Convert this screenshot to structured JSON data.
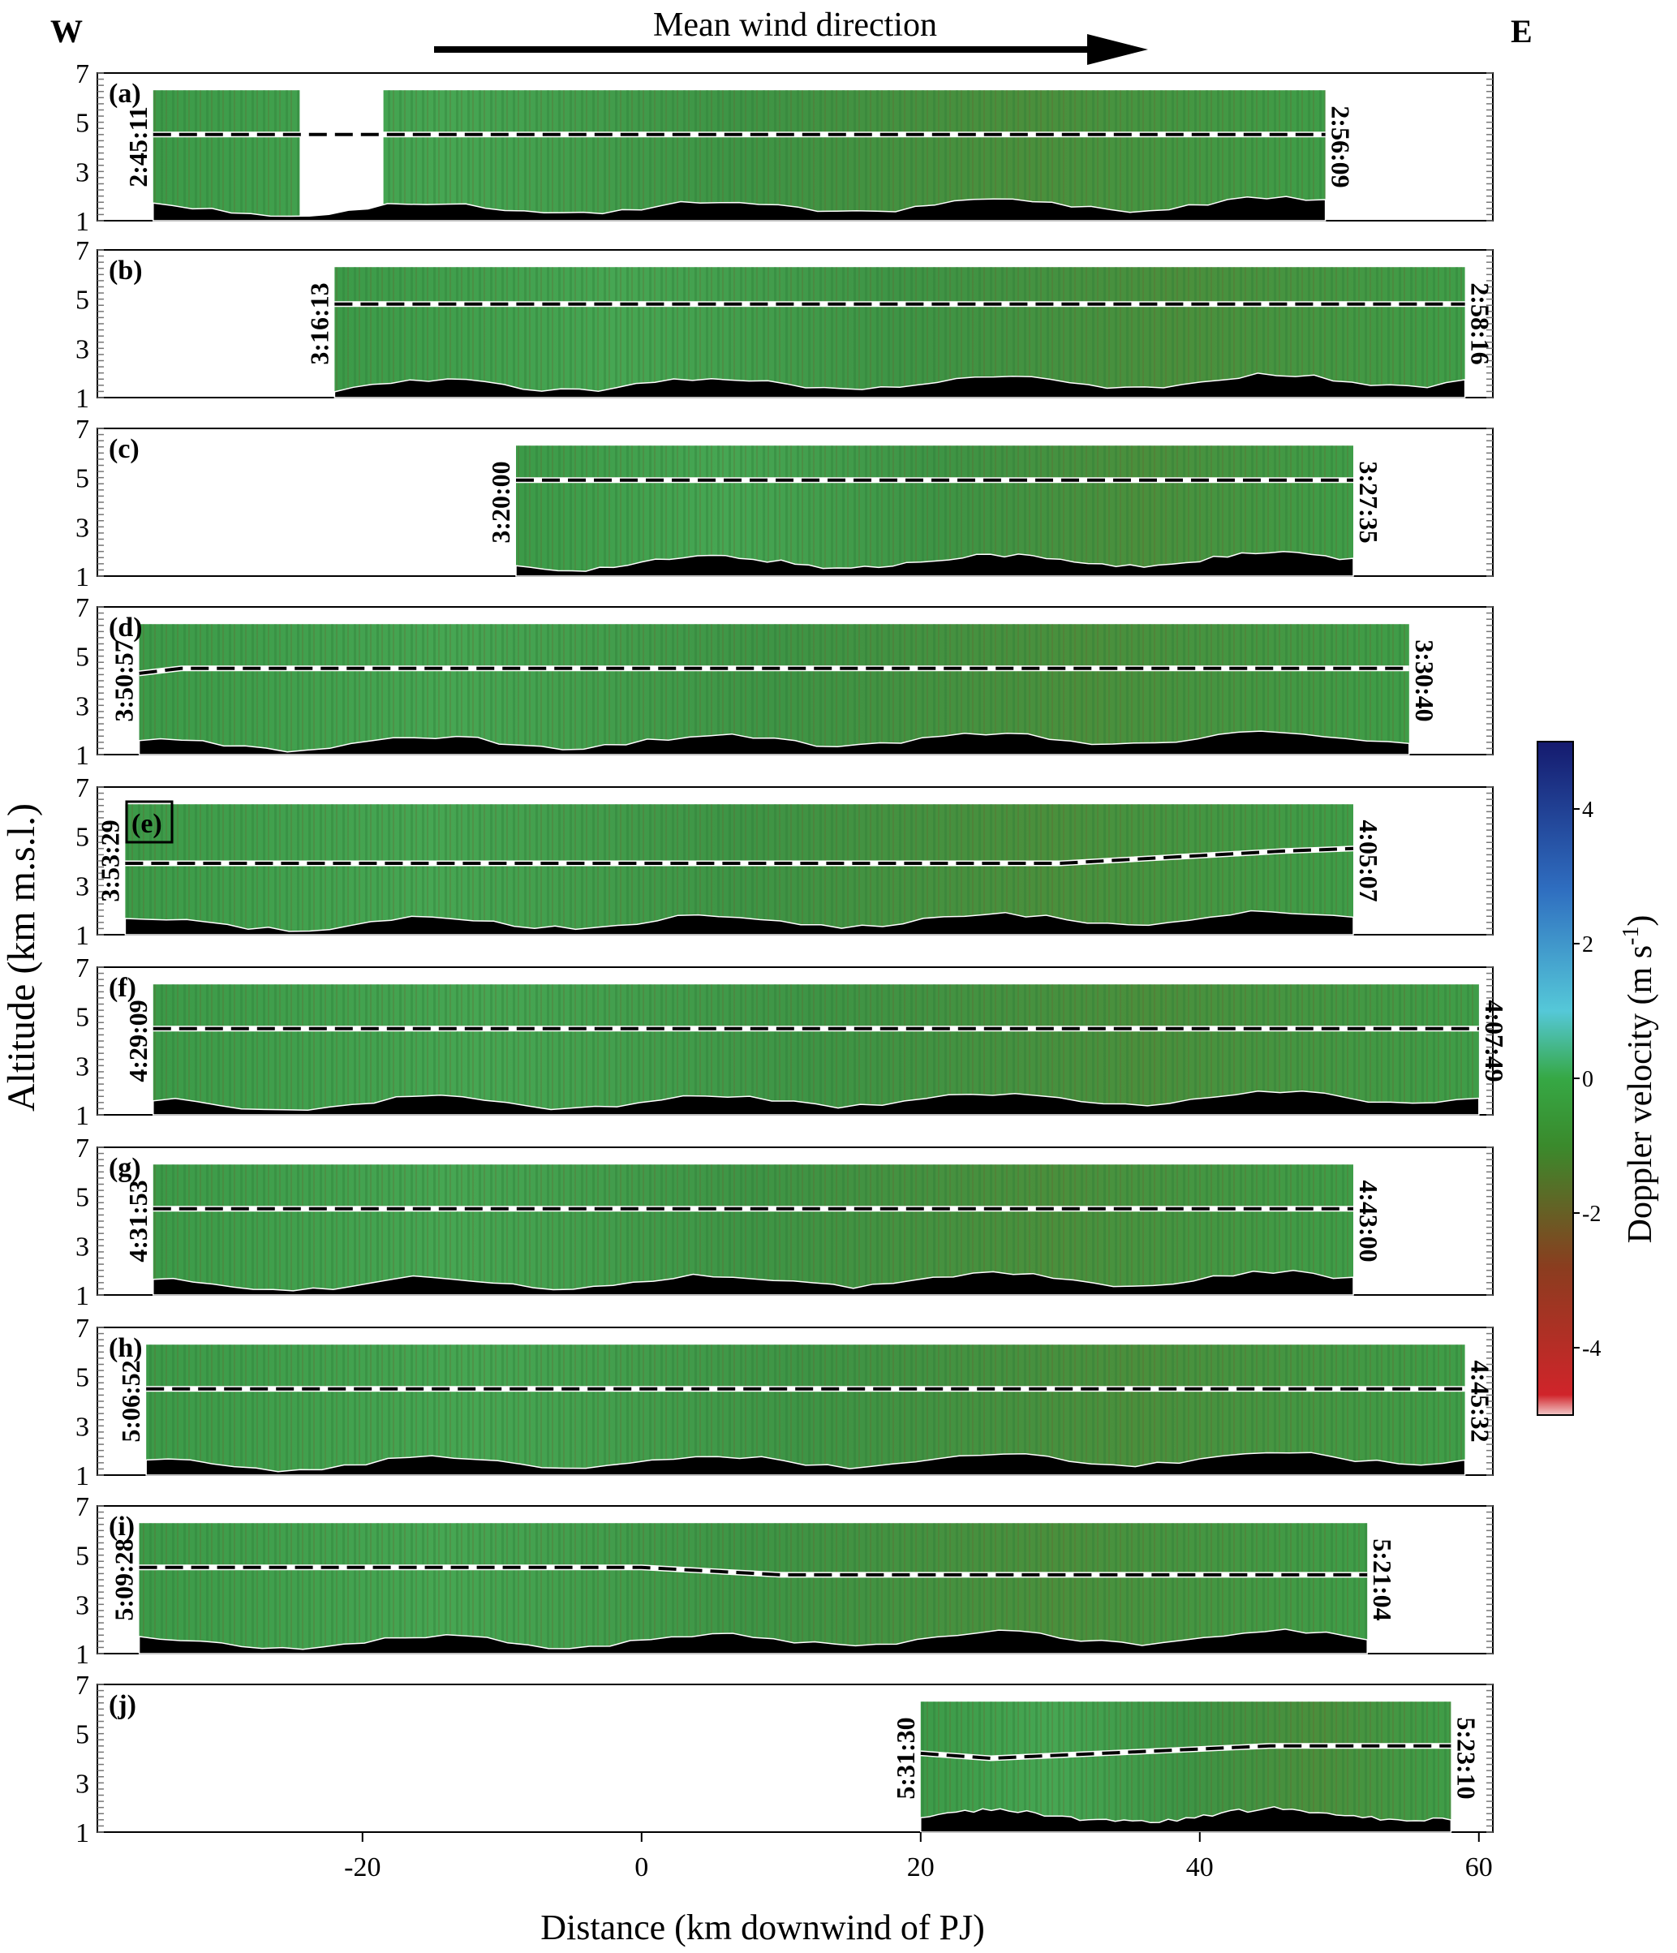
{
  "header": {
    "west": "W",
    "east": "E",
    "wind_label": "Mean wind direction"
  },
  "chart_data": {
    "type": "heatmap",
    "xlabel": "Distance (km downwind of PJ)",
    "ylabel": "Altitude (km m.s.l.)",
    "xlim": [
      -39,
      61
    ],
    "ylim": [
      1,
      7
    ],
    "xticks": [
      -20,
      0,
      20,
      40,
      60
    ],
    "yticks": [
      1,
      3,
      5,
      7
    ],
    "colorbar": {
      "label": "Doppler velocity (m s",
      "label_sup": "-1",
      "label_end": ")",
      "range": [
        -5,
        5
      ],
      "ticks": [
        4,
        2,
        0,
        -2,
        -4
      ],
      "colors": [
        "#d0242a",
        "#8a3d1f",
        "#3a8a2c",
        "#36a845",
        "#55c8d8",
        "#2f6ec0",
        "#151a6e"
      ]
    },
    "panels": [
      {
        "label": "(a)",
        "x_start": -35,
        "x_end": 49,
        "t_left": "2:45:11",
        "t_right": "2:56:09",
        "gap": [
          -24.5,
          -18.5
        ],
        "dashed_y": [
          [
            -35,
            4.5
          ],
          [
            49,
            4.5
          ]
        ],
        "echo_top": 6.3
      },
      {
        "label": "(b)",
        "x_start": -22,
        "x_end": 59,
        "t_left": "3:16:13",
        "t_right": "2:58:16",
        "dashed_y": [
          [
            -22,
            4.8
          ],
          [
            59,
            4.8
          ]
        ],
        "echo_top": 6.3
      },
      {
        "label": "(c)",
        "x_start": -9,
        "x_end": 51,
        "t_left": "3:20:00",
        "t_right": "3:27:35",
        "dashed_y": [
          [
            -9,
            4.9
          ],
          [
            51,
            4.9
          ]
        ],
        "echo_top": 6.3
      },
      {
        "label": "(d)",
        "x_start": -36,
        "x_end": 55,
        "t_left": "3:50:57",
        "t_right": "3:30:40",
        "dashed_y": [
          [
            -36,
            4.3
          ],
          [
            -33,
            4.5
          ],
          [
            55,
            4.5
          ]
        ],
        "echo_top": 6.3
      },
      {
        "label": "(e)",
        "x_start": -37,
        "x_end": 51,
        "t_left": "3:53:29",
        "t_right": "4:05:07",
        "dashed_y": [
          [
            -37,
            3.9
          ],
          [
            30,
            3.9
          ],
          [
            46,
            4.4
          ],
          [
            51,
            4.5
          ]
        ],
        "echo_top": 6.3
      },
      {
        "label": "(f)",
        "x_start": -35,
        "x_end": 60,
        "t_left": "4:29:09",
        "t_right": "4:07:49",
        "dashed_y": [
          [
            -35,
            4.5
          ],
          [
            60,
            4.5
          ]
        ],
        "echo_top": 6.3
      },
      {
        "label": "(g)",
        "x_start": -35,
        "x_end": 51,
        "t_left": "4:31:53",
        "t_right": "4:43:00",
        "dashed_y": [
          [
            -35,
            4.5
          ],
          [
            51,
            4.5
          ]
        ],
        "echo_top": 6.3
      },
      {
        "label": "(h)",
        "x_start": -35.5,
        "x_end": 59,
        "t_left": "5:06:52",
        "t_right": "4:45:32",
        "dashed_y": [
          [
            -35.5,
            4.5
          ],
          [
            59,
            4.5
          ]
        ],
        "echo_top": 6.3
      },
      {
        "label": "(i)",
        "x_start": -36,
        "x_end": 52,
        "t_left": "5:09:28",
        "t_right": "5:21:04",
        "dashed_y": [
          [
            -36,
            4.5
          ],
          [
            0,
            4.5
          ],
          [
            10,
            4.2
          ],
          [
            52,
            4.2
          ]
        ],
        "echo_top": 6.3
      },
      {
        "label": "(j)",
        "x_start": 20,
        "x_end": 58,
        "t_left": "5:31:30",
        "t_right": "5:23:10",
        "dashed_y": [
          [
            20,
            4.2
          ],
          [
            25,
            4.0
          ],
          [
            45,
            4.5
          ],
          [
            58,
            4.5
          ]
        ],
        "echo_top": 6.3
      }
    ]
  }
}
